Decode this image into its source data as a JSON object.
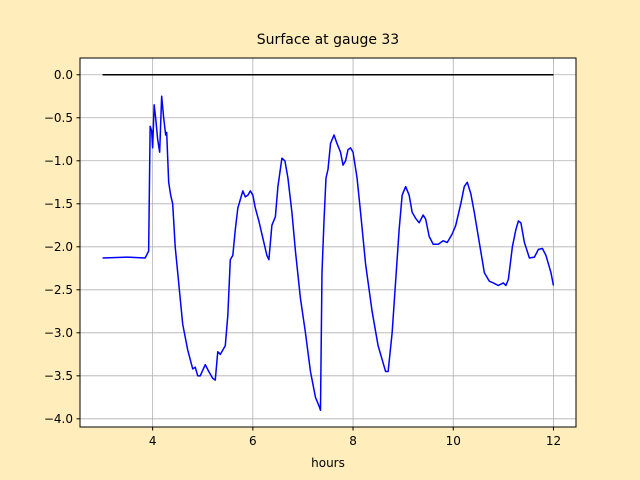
{
  "chart_data": {
    "type": "line",
    "title": "Surface at gauge 33",
    "xlabel": "hours",
    "xlim": [
      2.55,
      12.45
    ],
    "xticks": [
      4,
      6,
      8,
      10,
      12
    ],
    "ylim": [
      -4.095,
      0.195
    ],
    "yticks": [
      {
        "value": 0,
        "label": "0.0"
      },
      {
        "value": -0.5,
        "label": "−0.5"
      },
      {
        "value": -1,
        "label": "−1.0"
      },
      {
        "value": -1.5,
        "label": "−1.5"
      },
      {
        "value": -2,
        "label": "−2.0"
      },
      {
        "value": -2.5,
        "label": "−2.5"
      },
      {
        "value": -3,
        "label": "−3.0"
      },
      {
        "value": -3.5,
        "label": "−3.5"
      },
      {
        "value": -4,
        "label": "−4.0"
      }
    ],
    "grid": true,
    "series": [
      {
        "color": "#000000",
        "x": [
          3,
          12
        ],
        "values": [
          0,
          0
        ]
      },
      {
        "color": "#0000ff",
        "x": [
          3.0,
          3.5,
          3.85,
          3.92,
          3.95,
          3.98,
          4.0,
          4.03,
          4.06,
          4.1,
          4.14,
          4.18,
          4.22,
          4.26,
          4.28,
          4.32,
          4.36,
          4.4,
          4.45,
          4.5,
          4.55,
          4.6,
          4.7,
          4.8,
          4.85,
          4.9,
          4.95,
          5.05,
          5.12,
          5.2,
          5.25,
          5.3,
          5.35,
          5.45,
          5.5,
          5.55,
          5.6,
          5.65,
          5.7,
          5.75,
          5.8,
          5.85,
          5.9,
          5.95,
          6.0,
          6.05,
          6.12,
          6.2,
          6.28,
          6.32,
          6.38,
          6.45,
          6.5,
          6.58,
          6.64,
          6.7,
          6.78,
          6.85,
          6.95,
          7.05,
          7.15,
          7.25,
          7.32,
          7.35,
          7.38,
          7.42,
          7.46,
          7.5,
          7.55,
          7.62,
          7.68,
          7.75,
          7.8,
          7.85,
          7.9,
          7.95,
          8.0,
          8.08,
          8.15,
          8.25,
          8.38,
          8.5,
          8.6,
          8.65,
          8.7,
          8.78,
          8.85,
          8.92,
          8.98,
          9.05,
          9.12,
          9.18,
          9.25,
          9.32,
          9.4,
          9.45,
          9.52,
          9.6,
          9.7,
          9.8,
          9.88,
          9.98,
          10.05,
          10.15,
          10.22,
          10.28,
          10.35,
          10.42,
          10.52,
          10.62,
          10.72,
          10.8,
          10.9,
          11.0,
          11.05,
          11.1,
          11.18,
          11.25,
          11.3,
          11.35,
          11.42,
          11.52,
          11.62,
          11.7,
          11.78,
          11.85,
          11.95,
          12.0
        ],
        "values": [
          -2.13,
          -2.12,
          -2.13,
          -2.05,
          -0.6,
          -0.65,
          -0.85,
          -0.35,
          -0.5,
          -0.75,
          -0.9,
          -0.25,
          -0.5,
          -0.7,
          -0.67,
          -1.25,
          -1.4,
          -1.5,
          -2.0,
          -2.3,
          -2.6,
          -2.9,
          -3.2,
          -3.42,
          -3.4,
          -3.5,
          -3.5,
          -3.37,
          -3.45,
          -3.53,
          -3.55,
          -3.22,
          -3.25,
          -3.15,
          -2.8,
          -2.15,
          -2.1,
          -1.8,
          -1.55,
          -1.45,
          -1.35,
          -1.42,
          -1.4,
          -1.35,
          -1.4,
          -1.55,
          -1.7,
          -1.9,
          -2.1,
          -2.15,
          -1.75,
          -1.65,
          -1.3,
          -0.97,
          -1.0,
          -1.2,
          -1.6,
          -2.05,
          -2.6,
          -3.0,
          -3.45,
          -3.75,
          -3.85,
          -3.9,
          -2.3,
          -1.7,
          -1.2,
          -1.1,
          -0.8,
          -0.7,
          -0.8,
          -0.9,
          -1.05,
          -1.0,
          -0.87,
          -0.85,
          -0.9,
          -1.2,
          -1.6,
          -2.2,
          -2.75,
          -3.15,
          -3.35,
          -3.45,
          -3.45,
          -3.0,
          -2.4,
          -1.8,
          -1.4,
          -1.3,
          -1.4,
          -1.6,
          -1.67,
          -1.72,
          -1.63,
          -1.68,
          -1.88,
          -1.97,
          -1.97,
          -1.93,
          -1.95,
          -1.85,
          -1.75,
          -1.5,
          -1.3,
          -1.25,
          -1.38,
          -1.6,
          -1.95,
          -2.3,
          -2.4,
          -2.42,
          -2.45,
          -2.42,
          -2.45,
          -2.38,
          -2.0,
          -1.8,
          -1.7,
          -1.72,
          -1.95,
          -2.13,
          -2.12,
          -2.03,
          -2.02,
          -2.1,
          -2.3,
          -2.45
        ]
      }
    ]
  }
}
